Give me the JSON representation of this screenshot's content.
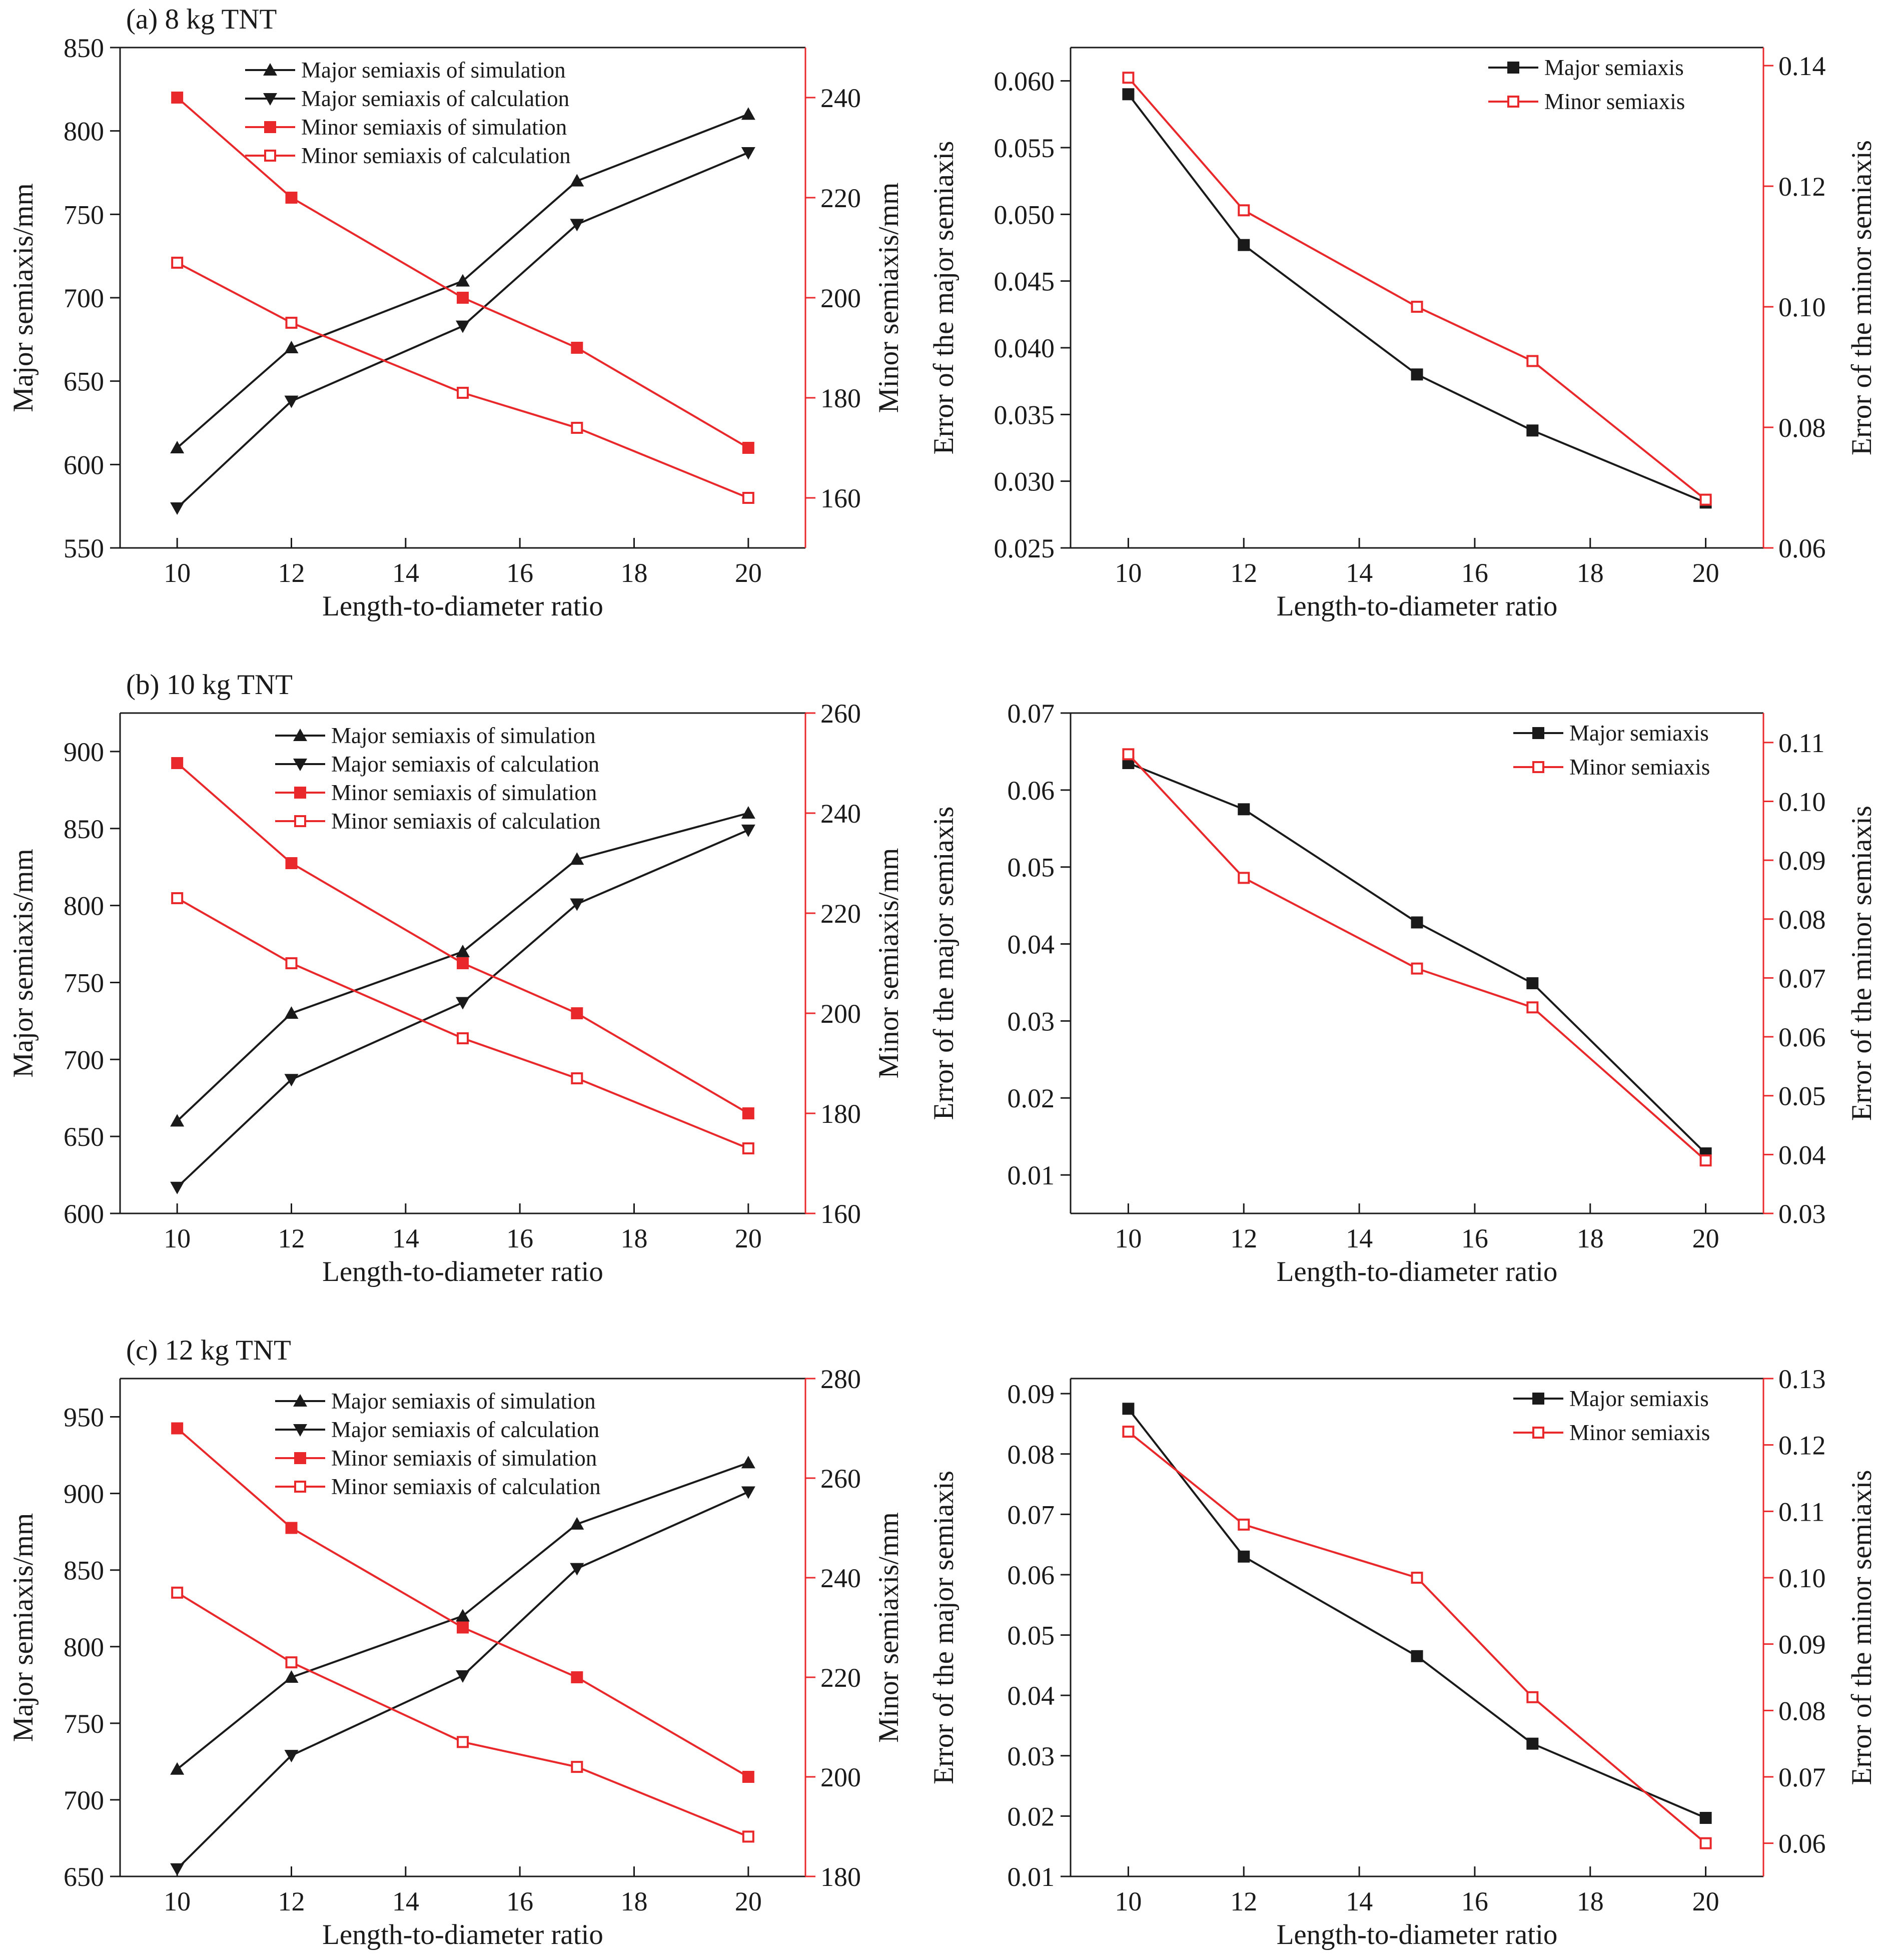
{
  "colors": {
    "black": "#1a1a1a",
    "red": "#e8282a"
  },
  "chart_data": [
    {
      "type": "line",
      "panel_label": "(a) 8 kg TNT",
      "xlabel": "Length-to-diameter ratio",
      "ylabel": "Major semiaxis/mm",
      "ylabel_right": "Minor semiaxis/mm",
      "xlim": [
        9,
        21
      ],
      "xticks": [
        10,
        12,
        14,
        16,
        18,
        20
      ],
      "ylim": [
        550,
        850
      ],
      "yticks": [
        550,
        600,
        650,
        700,
        750,
        800,
        850
      ],
      "ylim_right": [
        150,
        250
      ],
      "yticks_right": [
        160,
        180,
        200,
        220,
        240
      ],
      "x": [
        10,
        12,
        15,
        17,
        20
      ],
      "series": [
        {
          "name": "Major semiaxis of simulation",
          "axis": "left",
          "marker": "triangle-up",
          "color": "#1a1a1a",
          "values": [
            610,
            670,
            710,
            770,
            810
          ]
        },
        {
          "name": "Major semiaxis of calculation",
          "axis": "left",
          "marker": "triangle-down",
          "color": "#1a1a1a",
          "values": [
            574,
            638,
            683,
            744,
            787
          ]
        },
        {
          "name": "Minor semiaxis of simulation",
          "axis": "right",
          "marker": "square-filled",
          "color": "#e8282a",
          "values": [
            240,
            220,
            200,
            190,
            170
          ]
        },
        {
          "name": "Minor semiaxis of calculation",
          "axis": "right",
          "marker": "square-open",
          "color": "#e8282a",
          "values": [
            207,
            195,
            181,
            174,
            160
          ]
        }
      ]
    },
    {
      "type": "line",
      "panel_label": "",
      "xlabel": "Length-to-diameter ratio",
      "ylabel": "Error of the major semiaxis",
      "ylabel_right": "Error of the minor semiaxis",
      "xlim": [
        9,
        21
      ],
      "xticks": [
        10,
        12,
        14,
        16,
        18,
        20
      ],
      "ylim": [
        0.025,
        0.0625
      ],
      "yticks": [
        0.025,
        0.03,
        0.035,
        0.04,
        0.045,
        0.05,
        0.055,
        0.06
      ],
      "ydecimals": 3,
      "ylim_right": [
        0.06,
        0.143
      ],
      "yticks_right": [
        0.06,
        0.08,
        0.1,
        0.12,
        0.14
      ],
      "ydecimals_right": 2,
      "x": [
        10,
        12,
        15,
        17,
        20
      ],
      "series": [
        {
          "name": "Major semiaxis",
          "axis": "left",
          "marker": "square-filled",
          "color": "#1a1a1a",
          "values": [
            0.059,
            0.0477,
            0.038,
            0.0338,
            0.0284
          ]
        },
        {
          "name": "Minor semiaxis",
          "axis": "right",
          "marker": "square-open",
          "color": "#e8282a",
          "values": [
            0.138,
            0.116,
            0.1,
            0.091,
            0.068
          ]
        }
      ]
    },
    {
      "type": "line",
      "panel_label": "(b) 10 kg TNT",
      "xlabel": "Length-to-diameter ratio",
      "ylabel": "Major semiaxis/mm",
      "ylabel_right": "Minor semiaxis/mm",
      "xlim": [
        9,
        21
      ],
      "xticks": [
        10,
        12,
        14,
        16,
        18,
        20
      ],
      "ylim": [
        600,
        925
      ],
      "yticks": [
        600,
        650,
        700,
        750,
        800,
        850,
        900
      ],
      "ylim_right": [
        160,
        260
      ],
      "yticks_right": [
        160,
        180,
        200,
        220,
        240,
        260
      ],
      "x": [
        10,
        12,
        15,
        17,
        20
      ],
      "series": [
        {
          "name": "Major semiaxis of simulation",
          "axis": "left",
          "marker": "triangle-up",
          "color": "#1a1a1a",
          "values": [
            660,
            730,
            770,
            830,
            860
          ]
        },
        {
          "name": "Major semiaxis of calculation",
          "axis": "left",
          "marker": "triangle-down",
          "color": "#1a1a1a",
          "values": [
            617,
            687,
            737,
            801,
            849
          ]
        },
        {
          "name": "Minor semiaxis of simulation",
          "axis": "right",
          "marker": "square-filled",
          "color": "#e8282a",
          "values": [
            250,
            230,
            210,
            200,
            180
          ]
        },
        {
          "name": "Minor semiaxis of calculation",
          "axis": "right",
          "marker": "square-open",
          "color": "#e8282a",
          "values": [
            223,
            210,
            195,
            187,
            173
          ]
        }
      ]
    },
    {
      "type": "line",
      "panel_label": "",
      "xlabel": "Length-to-diameter ratio",
      "ylabel": "Error of the major semiaxis",
      "ylabel_right": "Error of the minor semiaxis",
      "xlim": [
        9,
        21
      ],
      "xticks": [
        10,
        12,
        14,
        16,
        18,
        20
      ],
      "ylim": [
        0.005,
        0.07
      ],
      "yticks": [
        0.01,
        0.02,
        0.03,
        0.04,
        0.05,
        0.06,
        0.07
      ],
      "ydecimals": 2,
      "ylim_right": [
        0.03,
        0.115
      ],
      "yticks_right": [
        0.03,
        0.04,
        0.05,
        0.06,
        0.07,
        0.08,
        0.09,
        0.1,
        0.11
      ],
      "ydecimals_right": 2,
      "x": [
        10,
        12,
        15,
        17,
        20
      ],
      "series": [
        {
          "name": "Major semiaxis",
          "axis": "left",
          "marker": "square-filled",
          "color": "#1a1a1a",
          "values": [
            0.0635,
            0.0575,
            0.0428,
            0.0349,
            0.0128
          ]
        },
        {
          "name": "Minor semiaxis",
          "axis": "right",
          "marker": "square-open",
          "color": "#e8282a",
          "values": [
            0.108,
            0.087,
            0.0716,
            0.065,
            0.039
          ]
        }
      ]
    },
    {
      "type": "line",
      "panel_label": "(c) 12 kg TNT",
      "xlabel": "Length-to-diameter ratio",
      "ylabel": "Major semiaxis/mm",
      "ylabel_right": "Minor semiaxis/mm",
      "xlim": [
        9,
        21
      ],
      "xticks": [
        10,
        12,
        14,
        16,
        18,
        20
      ],
      "ylim": [
        650,
        975
      ],
      "yticks": [
        650,
        700,
        750,
        800,
        850,
        900,
        950
      ],
      "ylim_right": [
        180,
        280
      ],
      "yticks_right": [
        180,
        200,
        220,
        240,
        260,
        280
      ],
      "x": [
        10,
        12,
        15,
        17,
        20
      ],
      "series": [
        {
          "name": "Major semiaxis of simulation",
          "axis": "left",
          "marker": "triangle-up",
          "color": "#1a1a1a",
          "values": [
            720,
            780,
            820,
            880,
            920
          ]
        },
        {
          "name": "Major semiaxis of calculation",
          "axis": "left",
          "marker": "triangle-down",
          "color": "#1a1a1a",
          "values": [
            655,
            729,
            781,
            851,
            901
          ]
        },
        {
          "name": "Minor semiaxis of simulation",
          "axis": "right",
          "marker": "square-filled",
          "color": "#e8282a",
          "values": [
            270,
            250,
            230,
            220,
            200
          ]
        },
        {
          "name": "Minor semiaxis of calculation",
          "axis": "right",
          "marker": "square-open",
          "color": "#e8282a",
          "values": [
            237,
            223,
            207,
            202,
            188
          ]
        }
      ]
    },
    {
      "type": "line",
      "panel_label": "",
      "xlabel": "Length-to-diameter ratio",
      "ylabel": "Error of the major semiaxis",
      "ylabel_right": "Error of the minor semiaxis",
      "xlim": [
        9,
        21
      ],
      "xticks": [
        10,
        12,
        14,
        16,
        18,
        20
      ],
      "ylim": [
        0.01,
        0.0925
      ],
      "yticks": [
        0.01,
        0.02,
        0.03,
        0.04,
        0.05,
        0.06,
        0.07,
        0.08,
        0.09
      ],
      "ydecimals": 2,
      "ylim_right": [
        0.055,
        0.13
      ],
      "yticks_right": [
        0.06,
        0.07,
        0.08,
        0.09,
        0.1,
        0.11,
        0.12,
        0.13
      ],
      "ydecimals_right": 2,
      "x": [
        10,
        12,
        15,
        17,
        20
      ],
      "series": [
        {
          "name": "Major semiaxis",
          "axis": "left",
          "marker": "square-filled",
          "color": "#1a1a1a",
          "values": [
            0.0875,
            0.063,
            0.0465,
            0.032,
            0.0197
          ]
        },
        {
          "name": "Minor semiaxis",
          "axis": "right",
          "marker": "square-open",
          "color": "#e8282a",
          "values": [
            0.122,
            0.108,
            0.1,
            0.082,
            0.06
          ]
        }
      ]
    }
  ]
}
